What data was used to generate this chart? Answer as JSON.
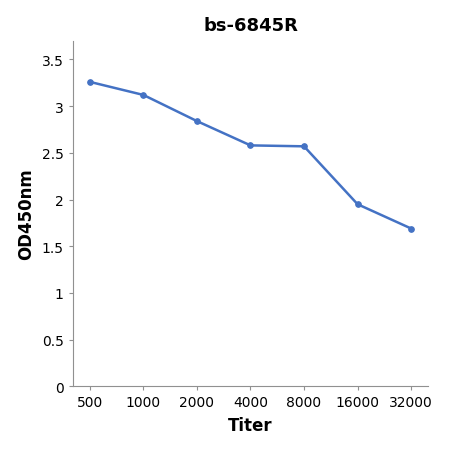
{
  "title": "bs-6845R",
  "xlabel": "Titer",
  "ylabel": "OD450nm",
  "x_values": [
    500,
    1000,
    2000,
    4000,
    8000,
    16000,
    32000
  ],
  "y_values": [
    3.26,
    3.12,
    2.84,
    2.58,
    2.57,
    1.95,
    1.69
  ],
  "line_color": "#4472C4",
  "marker_color": "#4472C4",
  "ylim": [
    0,
    3.7
  ],
  "yticks": [
    0,
    0.5,
    1.0,
    1.5,
    2.0,
    2.5,
    3.0,
    3.5
  ],
  "xtick_labels": [
    "500",
    "1000",
    "2000",
    "4000",
    "8000",
    "16000",
    "32000"
  ],
  "title_fontsize": 13,
  "axis_label_fontsize": 12,
  "tick_fontsize": 10,
  "line_width": 1.8,
  "marker_size": 4,
  "background_color": "#ffffff"
}
